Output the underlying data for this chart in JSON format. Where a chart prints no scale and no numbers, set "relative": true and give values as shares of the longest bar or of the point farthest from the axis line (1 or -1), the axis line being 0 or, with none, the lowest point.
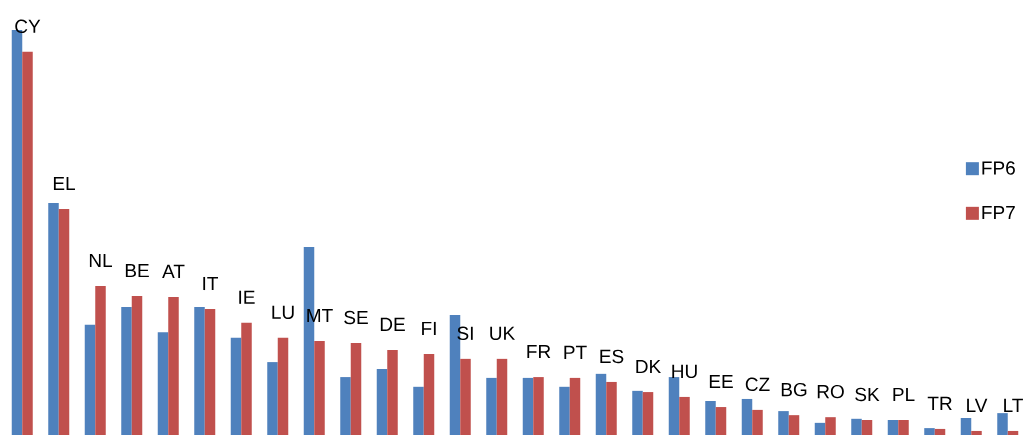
{
  "chart_data": {
    "type": "bar",
    "relative": true,
    "legend": "right",
    "categories": [
      "CY",
      "EL",
      "NL",
      "BE",
      "AT",
      "IT",
      "IE",
      "LU",
      "MT",
      "SE",
      "DE",
      "FI",
      "SI",
      "UK",
      "FR",
      "PT",
      "ES",
      "DK",
      "HU",
      "EE",
      "CZ",
      "BG",
      "RO",
      "SK",
      "PL",
      "TR",
      "LV",
      "LT"
    ],
    "series": [
      {
        "name": "FP6",
        "color": "#4f81bd",
        "values": [
          1.0,
          0.573,
          0.272,
          0.316,
          0.254,
          0.316,
          0.24,
          0.18,
          0.464,
          0.143,
          0.163,
          0.119,
          0.296,
          0.141,
          0.141,
          0.119,
          0.151,
          0.109,
          0.143,
          0.084,
          0.089,
          0.059,
          0.03,
          0.04,
          0.037,
          0.017,
          0.042,
          0.054
        ]
      },
      {
        "name": "FP7",
        "color": "#c0504d",
        "values": [
          0.946,
          0.558,
          0.368,
          0.343,
          0.341,
          0.311,
          0.277,
          0.24,
          0.232,
          0.227,
          0.21,
          0.2,
          0.188,
          0.188,
          0.143,
          0.141,
          0.131,
          0.106,
          0.094,
          0.069,
          0.062,
          0.049,
          0.044,
          0.037,
          0.037,
          0.015,
          0.01,
          0.01
        ]
      }
    ]
  }
}
